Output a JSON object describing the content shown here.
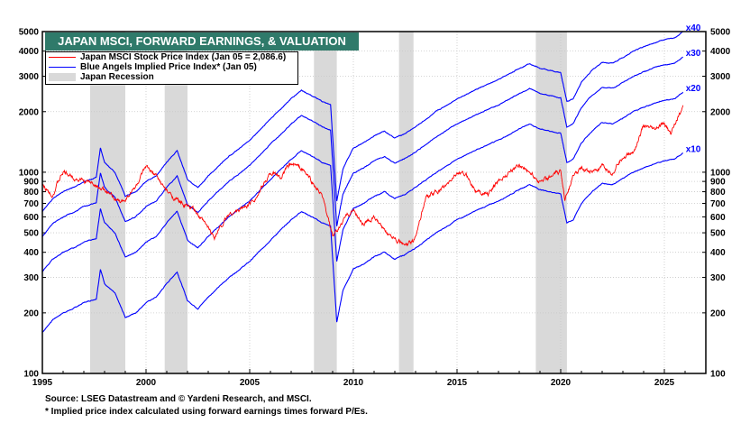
{
  "chart_data": {
    "type": "line",
    "title": "JAPAN MSCI, FORWARD EARNINGS, & VALUATION",
    "y_scale": "log",
    "ylim": [
      100,
      5000
    ],
    "xlim": [
      1995,
      2027
    ],
    "grid": true,
    "legend_placement": "top-left",
    "x_ticks": [
      "1995",
      "2000",
      "2005",
      "2010",
      "2015",
      "2020",
      "2025"
    ],
    "y_ticks": [
      5000,
      4000,
      3000,
      2000,
      1000,
      900,
      800,
      700,
      600,
      500,
      400,
      300,
      200,
      100
    ],
    "legend": [
      {
        "label": "Japan MSCI Stock Price Index (Jan 05 = 2,086.6)",
        "color": "#ff0000"
      },
      {
        "label": "Blue Angels Implied Price Index* (Jan 05)",
        "color": "#0000ff"
      },
      {
        "label": "Japan Recession",
        "color": "#d9d9d9"
      }
    ],
    "recessions": [
      [
        1997.3,
        1999.0
      ],
      [
        2000.9,
        2002.0
      ],
      [
        2008.1,
        2009.2
      ],
      [
        2012.2,
        2012.9
      ],
      [
        2018.8,
        2020.3
      ]
    ],
    "price_index": {
      "name": "Japan MSCI Stock Price Index",
      "x": [
        1995.0,
        1995.5,
        1996.0,
        1996.5,
        1997.0,
        1997.5,
        1998.0,
        1998.8,
        1999.5,
        2000.0,
        2000.5,
        2001.0,
        2001.7,
        2002.3,
        2003.3,
        2004.0,
        2004.5,
        2005.0,
        2005.5,
        2006.0,
        2006.5,
        2007.0,
        2007.5,
        2008.0,
        2008.5,
        2009.0,
        2009.2,
        2009.6,
        2010.0,
        2010.5,
        2011.0,
        2011.5,
        2012.0,
        2012.5,
        2012.9,
        2013.5,
        2014.0,
        2014.5,
        2015.0,
        2015.5,
        2016.0,
        2016.5,
        2017.0,
        2017.5,
        2018.0,
        2018.5,
        2019.0,
        2019.5,
        2020.0,
        2020.2,
        2020.6,
        2021.0,
        2021.5,
        2022.0,
        2022.5,
        2023.0,
        2023.5,
        2024.0,
        2024.5,
        2025.0,
        2025.3,
        2025.6,
        2025.9
      ],
      "y": [
        850,
        780,
        1000,
        950,
        900,
        880,
        800,
        700,
        850,
        1050,
        950,
        800,
        700,
        650,
        480,
        620,
        650,
        700,
        800,
        1000,
        950,
        1100,
        1050,
        900,
        750,
        480,
        500,
        600,
        650,
        550,
        600,
        500,
        480,
        430,
        450,
        750,
        800,
        850,
        1000,
        950,
        800,
        780,
        900,
        1000,
        1100,
        1000,
        900,
        950,
        1000,
        750,
        950,
        1050,
        1000,
        1050,
        1000,
        1200,
        1250,
        1700,
        1600,
        1750,
        1550,
        1850,
        2087
      ]
    },
    "implied_base": {
      "name": "Blue Angels Implied Price Index (x10 forward P/E)",
      "x": [
        1995.0,
        1995.5,
        1996.0,
        1996.5,
        1997.0,
        1997.6,
        1997.8,
        1998.0,
        1998.5,
        1999.0,
        1999.5,
        2000.0,
        2000.5,
        2001.0,
        2001.5,
        2002.0,
        2002.5,
        2003.0,
        2004.0,
        2005.0,
        2006.0,
        2007.0,
        2007.5,
        2008.0,
        2008.5,
        2008.9,
        2009.2,
        2009.5,
        2010.0,
        2010.5,
        2011.0,
        2011.5,
        2012.0,
        2012.5,
        2013.0,
        2014.0,
        2015.0,
        2016.0,
        2017.0,
        2018.0,
        2018.5,
        2019.0,
        2019.5,
        2020.0,
        2020.3,
        2020.6,
        2021.0,
        2021.5,
        2022.0,
        2022.5,
        2023.0,
        2023.5,
        2024.0,
        2024.5,
        2025.0,
        2025.5,
        2025.9
      ],
      "y": [
        160,
        185,
        200,
        210,
        225,
        235,
        330,
        280,
        250,
        190,
        200,
        225,
        240,
        280,
        320,
        230,
        210,
        240,
        300,
        360,
        460,
        580,
        640,
        600,
        560,
        540,
        180,
        260,
        330,
        350,
        380,
        400,
        370,
        390,
        420,
        500,
        580,
        650,
        720,
        820,
        870,
        820,
        800,
        780,
        560,
        580,
        700,
        800,
        880,
        870,
        930,
        1000,
        1050,
        1100,
        1140,
        1160,
        1250
      ]
    },
    "implied_multiples": [
      {
        "multiple": 10,
        "label": "x10"
      },
      {
        "multiple": 20,
        "label": "x20"
      },
      {
        "multiple": 30,
        "label": "x30"
      },
      {
        "multiple": 40,
        "label": "x40"
      }
    ]
  },
  "footer": {
    "source": "Source: LSEG Datastream and © Yardeni Research, and MSCI.",
    "note": "* Implied price index calculated using forward earnings times forward P/Es."
  }
}
